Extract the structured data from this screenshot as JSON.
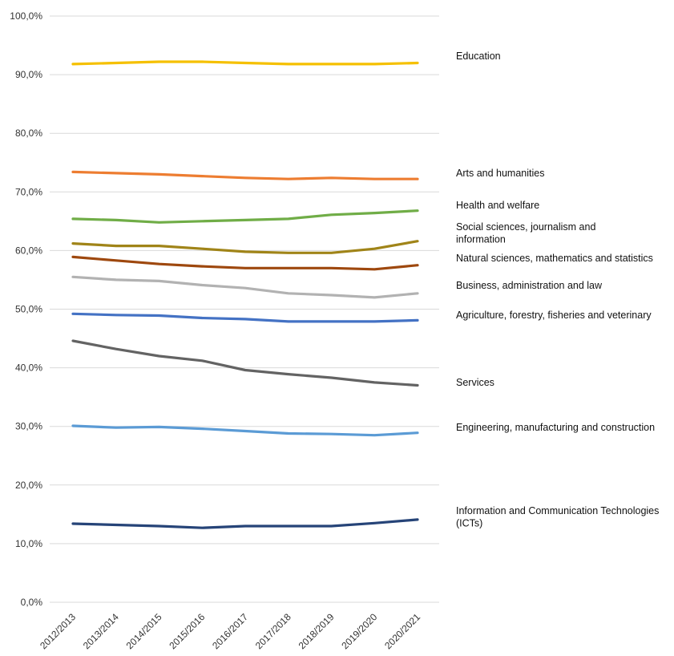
{
  "chart_data": {
    "type": "line",
    "title": "",
    "xlabel": "",
    "ylabel": "",
    "ylim": [
      0,
      100
    ],
    "y_ticks": [
      "0,0%",
      "10,0%",
      "20,0%",
      "30,0%",
      "40,0%",
      "50,0%",
      "60,0%",
      "70,0%",
      "80,0%",
      "90,0%",
      "100,0%"
    ],
    "grid": true,
    "legend": "right-of-plot series labels",
    "categories": [
      "2012/2013",
      "2013/2014",
      "2014/2015",
      "2015/2016",
      "2016/2017",
      "2017/2018",
      "2018/2019",
      "2019/2020",
      "2020/2021"
    ],
    "series": [
      {
        "name": "Education",
        "label_lines": [
          "Education"
        ],
        "color": "#f5c000",
        "values": [
          91.8,
          92.0,
          92.2,
          92.2,
          92.0,
          91.8,
          91.8,
          91.8,
          92.0
        ]
      },
      {
        "name": "Arts and humanities",
        "label_lines": [
          "Arts and humanities"
        ],
        "color": "#ed7d31",
        "values": [
          73.4,
          73.2,
          73.0,
          72.7,
          72.4,
          72.2,
          72.4,
          72.2,
          72.2
        ]
      },
      {
        "name": "Health and welfare",
        "label_lines": [
          "Health and welfare"
        ],
        "color": "#70ad47",
        "values": [
          65.4,
          65.2,
          64.8,
          65.0,
          65.2,
          65.4,
          66.1,
          66.4,
          66.8
        ]
      },
      {
        "name": "Social sciences, journalism and information",
        "label_lines": [
          "Social sciences, journalism and",
          "information"
        ],
        "color": "#a08418",
        "values": [
          61.2,
          60.8,
          60.8,
          60.3,
          59.8,
          59.6,
          59.6,
          60.3,
          61.6
        ]
      },
      {
        "name": "Natural sciences, mathematics and statistics",
        "label_lines": [
          "Natural sciences, mathematics and statistics"
        ],
        "color": "#9e480e",
        "values": [
          58.9,
          58.3,
          57.7,
          57.3,
          57.0,
          57.0,
          57.0,
          56.8,
          57.5
        ]
      },
      {
        "name": "Business, administration and law",
        "label_lines": [
          "Business, administration and law"
        ],
        "color": "#b2b2b2",
        "values": [
          55.5,
          55.0,
          54.8,
          54.1,
          53.6,
          52.7,
          52.4,
          52.0,
          52.7
        ]
      },
      {
        "name": "Agriculture, forestry, fisheries and veterinary",
        "label_lines": [
          "Agriculture, forestry, fisheries and veterinary"
        ],
        "color": "#4472c4",
        "values": [
          49.2,
          49.0,
          48.9,
          48.5,
          48.3,
          47.9,
          47.9,
          47.9,
          48.1
        ]
      },
      {
        "name": "Services",
        "label_lines": [
          "Services"
        ],
        "color": "#636363",
        "values": [
          44.6,
          43.2,
          42.0,
          41.2,
          39.6,
          38.9,
          38.3,
          37.5,
          37.0
        ]
      },
      {
        "name": "Engineering, manufacturing and construction",
        "label_lines": [
          "Engineering, manufacturing and construction"
        ],
        "color": "#5b9bd5",
        "values": [
          30.1,
          29.8,
          29.9,
          29.6,
          29.2,
          28.8,
          28.7,
          28.5,
          28.9
        ]
      },
      {
        "name": "Information and Communication Technologies (ICTs)",
        "label_lines": [
          "Information and Communication Technologies",
          "(ICTs)"
        ],
        "color": "#264478",
        "values": [
          13.4,
          13.2,
          13.0,
          12.7,
          13.0,
          13.0,
          13.0,
          13.5,
          14.1
        ]
      }
    ]
  }
}
